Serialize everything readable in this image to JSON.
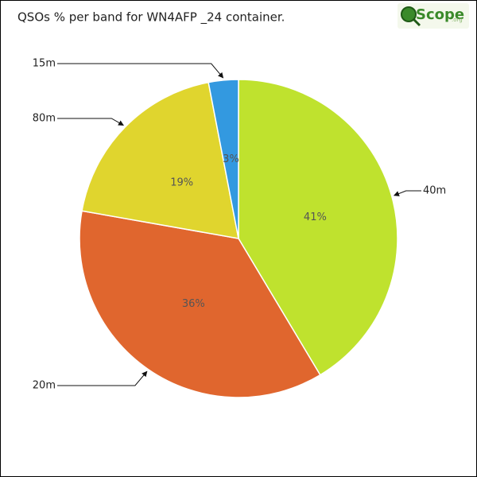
{
  "chart_data": {
    "type": "pie",
    "title": "QSOs % per band for WN4AFP _24 container.",
    "logo": {
      "text": "Scope",
      "suffix": ".org"
    },
    "categories": [
      "40m",
      "20m",
      "80m",
      "15m"
    ],
    "values": [
      41,
      36,
      19,
      3
    ],
    "value_labels": [
      "41%",
      "36%",
      "19%",
      "3%"
    ],
    "colors": [
      "#bfe22e",
      "#e0662e",
      "#e0d52e",
      "#3399e0"
    ]
  }
}
